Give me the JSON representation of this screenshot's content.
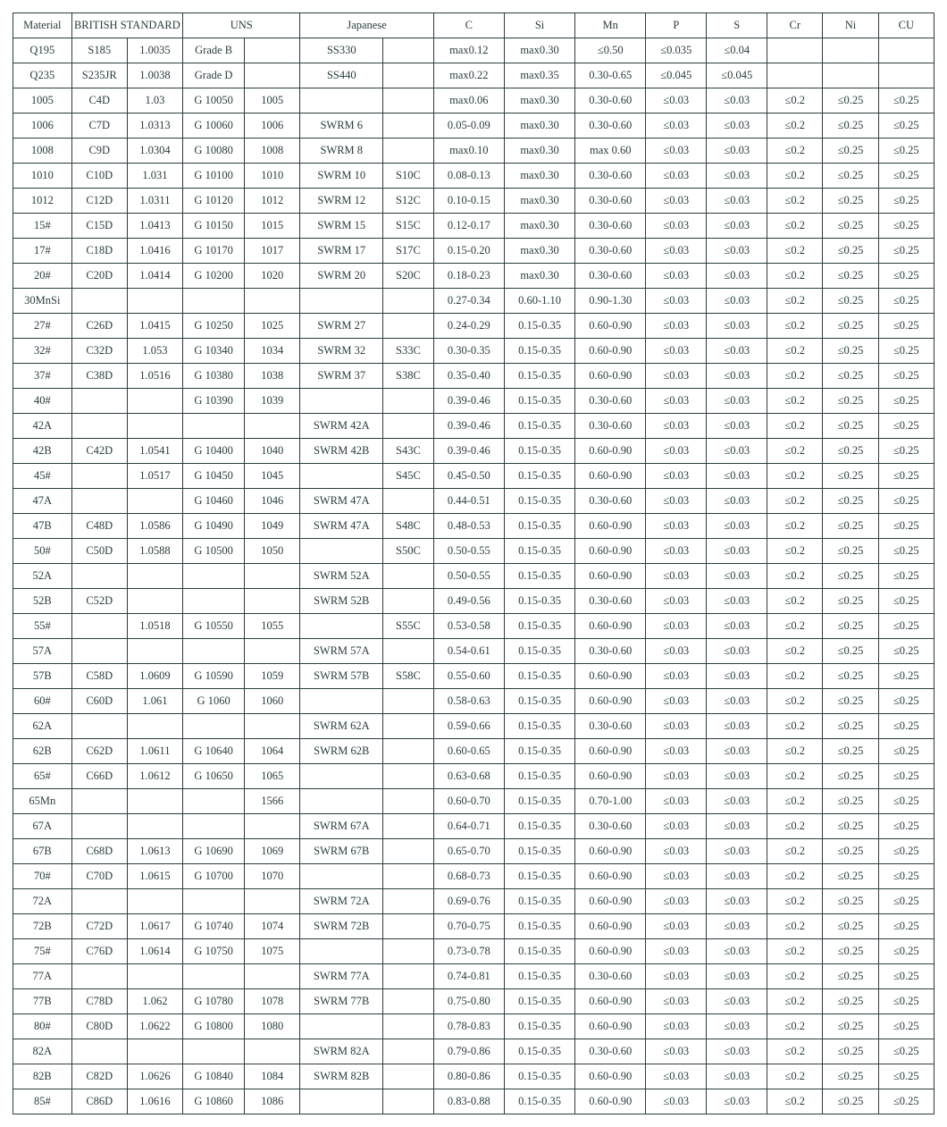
{
  "table": {
    "type": "table",
    "border_color": "#2b3d3f",
    "background_color": "#ffffff",
    "text_color": "#2b3d3f",
    "font_family": "Times New Roman",
    "font_size_pt": 9,
    "header_groups": [
      {
        "label": "Material",
        "span": 1
      },
      {
        "label": "BRITISH STANDARD",
        "span": 2
      },
      {
        "label": "UNS",
        "span": 2
      },
      {
        "label": "Japanese",
        "span": 2
      },
      {
        "label": "C",
        "span": 1
      },
      {
        "label": "Si",
        "span": 1
      },
      {
        "label": "Mn",
        "span": 1
      },
      {
        "label": "P",
        "span": 1
      },
      {
        "label": "S",
        "span": 1
      },
      {
        "label": "Cr",
        "span": 1
      },
      {
        "label": "Ni",
        "span": 1
      },
      {
        "label": "CU",
        "span": 1
      }
    ],
    "rows": [
      [
        "Q195",
        "S185",
        "1.0035",
        "Grade B",
        "",
        "SS330",
        "",
        "max0.12",
        "max0.30",
        "≤0.50",
        "≤0.035",
        "≤0.04",
        "",
        "",
        ""
      ],
      [
        "Q235",
        "S235JR",
        "1.0038",
        "Grade D",
        "",
        "SS440",
        "",
        "max0.22",
        "max0.35",
        "0.30-0.65",
        "≤0.045",
        "≤0.045",
        "",
        "",
        ""
      ],
      [
        "1005",
        "C4D",
        "1.03",
        "G 10050",
        "1005",
        "",
        "",
        "max0.06",
        "max0.30",
        "0.30-0.60",
        "≤0.03",
        "≤0.03",
        "≤0.2",
        "≤0.25",
        "≤0.25"
      ],
      [
        "1006",
        "C7D",
        "1.0313",
        "G 10060",
        "1006",
        "SWRM 6",
        "",
        "0.05-0.09",
        "max0.30",
        "0.30-0.60",
        "≤0.03",
        "≤0.03",
        "≤0.2",
        "≤0.25",
        "≤0.25"
      ],
      [
        "1008",
        "C9D",
        "1.0304",
        "G 10080",
        "1008",
        "SWRM 8",
        "",
        "max0.10",
        "max0.30",
        "max 0.60",
        "≤0.03",
        "≤0.03",
        "≤0.2",
        "≤0.25",
        "≤0.25"
      ],
      [
        "1010",
        "C10D",
        "1.031",
        "G 10100",
        "1010",
        "SWRM 10",
        "S10C",
        "0.08-0.13",
        "max0.30",
        "0.30-0.60",
        "≤0.03",
        "≤0.03",
        "≤0.2",
        "≤0.25",
        "≤0.25"
      ],
      [
        "1012",
        "C12D",
        "1.0311",
        "G 10120",
        "1012",
        "SWRM 12",
        "S12C",
        "0.10-0.15",
        "max0.30",
        "0.30-0.60",
        "≤0.03",
        "≤0.03",
        "≤0.2",
        "≤0.25",
        "≤0.25"
      ],
      [
        "15#",
        "C15D",
        "1.0413",
        "G 10150",
        "1015",
        "SWRM 15",
        "S15C",
        "0.12-0.17",
        "max0.30",
        "0.30-0.60",
        "≤0.03",
        "≤0.03",
        "≤0.2",
        "≤0.25",
        "≤0.25"
      ],
      [
        "17#",
        "C18D",
        "1.0416",
        "G 10170",
        "1017",
        "SWRM 17",
        "S17C",
        "0.15-0.20",
        "max0.30",
        "0.30-0.60",
        "≤0.03",
        "≤0.03",
        "≤0.2",
        "≤0.25",
        "≤0.25"
      ],
      [
        "20#",
        "C20D",
        "1.0414",
        "G 10200",
        "1020",
        "SWRM 20",
        "S20C",
        "0.18-0.23",
        "max0.30",
        "0.30-0.60",
        "≤0.03",
        "≤0.03",
        "≤0.2",
        "≤0.25",
        "≤0.25"
      ],
      [
        "30MnSi",
        "",
        "",
        "",
        "",
        "",
        "",
        "0.27-0.34",
        "0.60-1.10",
        "0.90-1.30",
        "≤0.03",
        "≤0.03",
        "≤0.2",
        "≤0.25",
        "≤0.25"
      ],
      [
        "27#",
        "C26D",
        "1.0415",
        "G 10250",
        "1025",
        "SWRM 27",
        "",
        "0.24-0.29",
        "0.15-0.35",
        "0.60-0.90",
        "≤0.03",
        "≤0.03",
        "≤0.2",
        "≤0.25",
        "≤0.25"
      ],
      [
        "32#",
        "C32D",
        "1.053",
        "G 10340",
        "1034",
        "SWRM 32",
        "S33C",
        "0.30-0.35",
        "0.15-0.35",
        "0.60-0.90",
        "≤0.03",
        "≤0.03",
        "≤0.2",
        "≤0.25",
        "≤0.25"
      ],
      [
        "37#",
        "C38D",
        "1.0516",
        "G 10380",
        "1038",
        "SWRM 37",
        "S38C",
        "0.35-0.40",
        "0.15-0.35",
        "0.60-0.90",
        "≤0.03",
        "≤0.03",
        "≤0.2",
        "≤0.25",
        "≤0.25"
      ],
      [
        "40#",
        "",
        "",
        "G 10390",
        "1039",
        "",
        "",
        "0.39-0.46",
        "0.15-0.35",
        "0.30-0.60",
        "≤0.03",
        "≤0.03",
        "≤0.2",
        "≤0.25",
        "≤0.25"
      ],
      [
        "42A",
        "",
        "",
        "",
        "",
        "SWRM 42A",
        "",
        "0.39-0.46",
        "0.15-0.35",
        "0.30-0.60",
        "≤0.03",
        "≤0.03",
        "≤0.2",
        "≤0.25",
        "≤0.25"
      ],
      [
        "42B",
        "C42D",
        "1.0541",
        "G 10400",
        "1040",
        "SWRM 42B",
        "S43C",
        "0.39-0.46",
        "0.15-0.35",
        "0.60-0.90",
        "≤0.03",
        "≤0.03",
        "≤0.2",
        "≤0.25",
        "≤0.25"
      ],
      [
        "45#",
        "",
        "1.0517",
        "G 10450",
        "1045",
        "",
        "S45C",
        "0.45-0.50",
        "0.15-0.35",
        "0.60-0.90",
        "≤0.03",
        "≤0.03",
        "≤0.2",
        "≤0.25",
        "≤0.25"
      ],
      [
        "47A",
        "",
        "",
        "G 10460",
        "1046",
        "SWRM 47A",
        "",
        "0.44-0.51",
        "0.15-0.35",
        "0.30-0.60",
        "≤0.03",
        "≤0.03",
        "≤0.2",
        "≤0.25",
        "≤0.25"
      ],
      [
        "47B",
        "C48D",
        "1.0586",
        "G 10490",
        "1049",
        "SWRM 47A",
        "S48C",
        "0.48-0.53",
        "0.15-0.35",
        "0.60-0.90",
        "≤0.03",
        "≤0.03",
        "≤0.2",
        "≤0.25",
        "≤0.25"
      ],
      [
        "50#",
        "C50D",
        "1.0588",
        "G 10500",
        "1050",
        "",
        "S50C",
        "0.50-0.55",
        "0.15-0.35",
        "0.60-0.90",
        "≤0.03",
        "≤0.03",
        "≤0.2",
        "≤0.25",
        "≤0.25"
      ],
      [
        "52A",
        "",
        "",
        "",
        "",
        "SWRM 52A",
        "",
        "0.50-0.55",
        "0.15-0.35",
        "0.60-0.90",
        "≤0.03",
        "≤0.03",
        "≤0.2",
        "≤0.25",
        "≤0.25"
      ],
      [
        "52B",
        "C52D",
        "",
        "",
        "",
        "SWRM 52B",
        "",
        "0.49-0.56",
        "0.15-0.35",
        "0.30-0.60",
        "≤0.03",
        "≤0.03",
        "≤0.2",
        "≤0.25",
        "≤0.25"
      ],
      [
        "55#",
        "",
        "1.0518",
        "G 10550",
        "1055",
        "",
        "S55C",
        "0.53-0.58",
        "0.15-0.35",
        "0.60-0.90",
        "≤0.03",
        "≤0.03",
        "≤0.2",
        "≤0.25",
        "≤0.25"
      ],
      [
        "57A",
        "",
        "",
        "",
        "",
        "SWRM 57A",
        "",
        "0.54-0.61",
        "0.15-0.35",
        "0.30-0.60",
        "≤0.03",
        "≤0.03",
        "≤0.2",
        "≤0.25",
        "≤0.25"
      ],
      [
        "57B",
        "C58D",
        "1.0609",
        "G 10590",
        "1059",
        "SWRM 57B",
        "S58C",
        "0.55-0.60",
        "0.15-0.35",
        "0.60-0.90",
        "≤0.03",
        "≤0.03",
        "≤0.2",
        "≤0.25",
        "≤0.25"
      ],
      [
        "60#",
        "C60D",
        "1.061",
        "G 1060",
        "1060",
        "",
        "",
        "0.58-0.63",
        "0.15-0.35",
        "0.60-0.90",
        "≤0.03",
        "≤0.03",
        "≤0.2",
        "≤0.25",
        "≤0.25"
      ],
      [
        "62A",
        "",
        "",
        "",
        "",
        "SWRM 62A",
        "",
        "0.59-0.66",
        "0.15-0.35",
        "0.30-0.60",
        "≤0.03",
        "≤0.03",
        "≤0.2",
        "≤0.25",
        "≤0.25"
      ],
      [
        "62B",
        "C62D",
        "1.0611",
        "G 10640",
        "1064",
        "SWRM 62B",
        "",
        "0.60-0.65",
        "0.15-0.35",
        "0.60-0.90",
        "≤0.03",
        "≤0.03",
        "≤0.2",
        "≤0.25",
        "≤0.25"
      ],
      [
        "65#",
        "C66D",
        "1.0612",
        "G 10650",
        "1065",
        "",
        "",
        "0.63-0.68",
        "0.15-0.35",
        "0.60-0.90",
        "≤0.03",
        "≤0.03",
        "≤0.2",
        "≤0.25",
        "≤0.25"
      ],
      [
        "65Mn",
        "",
        "",
        "",
        "1566",
        "",
        "",
        "0.60-0.70",
        "0.15-0.35",
        "0.70-1.00",
        "≤0.03",
        "≤0.03",
        "≤0.2",
        "≤0.25",
        "≤0.25"
      ],
      [
        "67A",
        "",
        "",
        "",
        "",
        "SWRM 67A",
        "",
        "0.64-0.71",
        "0.15-0.35",
        "0.30-0.60",
        "≤0.03",
        "≤0.03",
        "≤0.2",
        "≤0.25",
        "≤0.25"
      ],
      [
        "67B",
        "C68D",
        "1.0613",
        "G 10690",
        "1069",
        "SWRM 67B",
        "",
        "0.65-0.70",
        "0.15-0.35",
        "0.60-0.90",
        "≤0.03",
        "≤0.03",
        "≤0.2",
        "≤0.25",
        "≤0.25"
      ],
      [
        "70#",
        "C70D",
        "1.0615",
        "G 10700",
        "1070",
        "",
        "",
        "0.68-0.73",
        "0.15-0.35",
        "0.60-0.90",
        "≤0.03",
        "≤0.03",
        "≤0.2",
        "≤0.25",
        "≤0.25"
      ],
      [
        "72A",
        "",
        "",
        "",
        "",
        "SWRM 72A",
        "",
        "0.69-0.76",
        "0.15-0.35",
        "0.60-0.90",
        "≤0.03",
        "≤0.03",
        "≤0.2",
        "≤0.25",
        "≤0.25"
      ],
      [
        "72B",
        "C72D",
        "1.0617",
        "G 10740",
        "1074",
        "SWRM 72B",
        "",
        "0.70-0.75",
        "0.15-0.35",
        "0.60-0.90",
        "≤0.03",
        "≤0.03",
        "≤0.2",
        "≤0.25",
        "≤0.25"
      ],
      [
        "75#",
        "C76D",
        "1.0614",
        "G 10750",
        "1075",
        "",
        "",
        "0.73-0.78",
        "0.15-0.35",
        "0.60-0.90",
        "≤0.03",
        "≤0.03",
        "≤0.2",
        "≤0.25",
        "≤0.25"
      ],
      [
        "77A",
        "",
        "",
        "",
        "",
        "SWRM 77A",
        "",
        "0.74-0.81",
        "0.15-0.35",
        "0.30-0.60",
        "≤0.03",
        "≤0.03",
        "≤0.2",
        "≤0.25",
        "≤0.25"
      ],
      [
        "77B",
        "C78D",
        "1.062",
        "G 10780",
        "1078",
        "SWRM 77B",
        "",
        "0.75-0.80",
        "0.15-0.35",
        "0.60-0.90",
        "≤0.03",
        "≤0.03",
        "≤0.2",
        "≤0.25",
        "≤0.25"
      ],
      [
        "80#",
        "C80D",
        "1.0622",
        "G 10800",
        "1080",
        "",
        "",
        "0.78-0.83",
        "0.15-0.35",
        "0.60-0.90",
        "≤0.03",
        "≤0.03",
        "≤0.2",
        "≤0.25",
        "≤0.25"
      ],
      [
        "82A",
        "",
        "",
        "",
        "",
        "SWRM 82A",
        "",
        "0.79-0.86",
        "0.15-0.35",
        "0.30-0.60",
        "≤0.03",
        "≤0.03",
        "≤0.2",
        "≤0.25",
        "≤0.25"
      ],
      [
        "82B",
        "C82D",
        "1.0626",
        "G 10840",
        "1084",
        "SWRM 82B",
        "",
        "0.80-0.86",
        "0.15-0.35",
        "0.60-0.90",
        "≤0.03",
        "≤0.03",
        "≤0.2",
        "≤0.25",
        "≤0.25"
      ],
      [
        "85#",
        "C86D",
        "1.0616",
        "G 10860",
        "1086",
        "",
        "",
        "0.83-0.88",
        "0.15-0.35",
        "0.60-0.90",
        "≤0.03",
        "≤0.03",
        "≤0.2",
        "≤0.25",
        "≤0.25"
      ]
    ]
  }
}
